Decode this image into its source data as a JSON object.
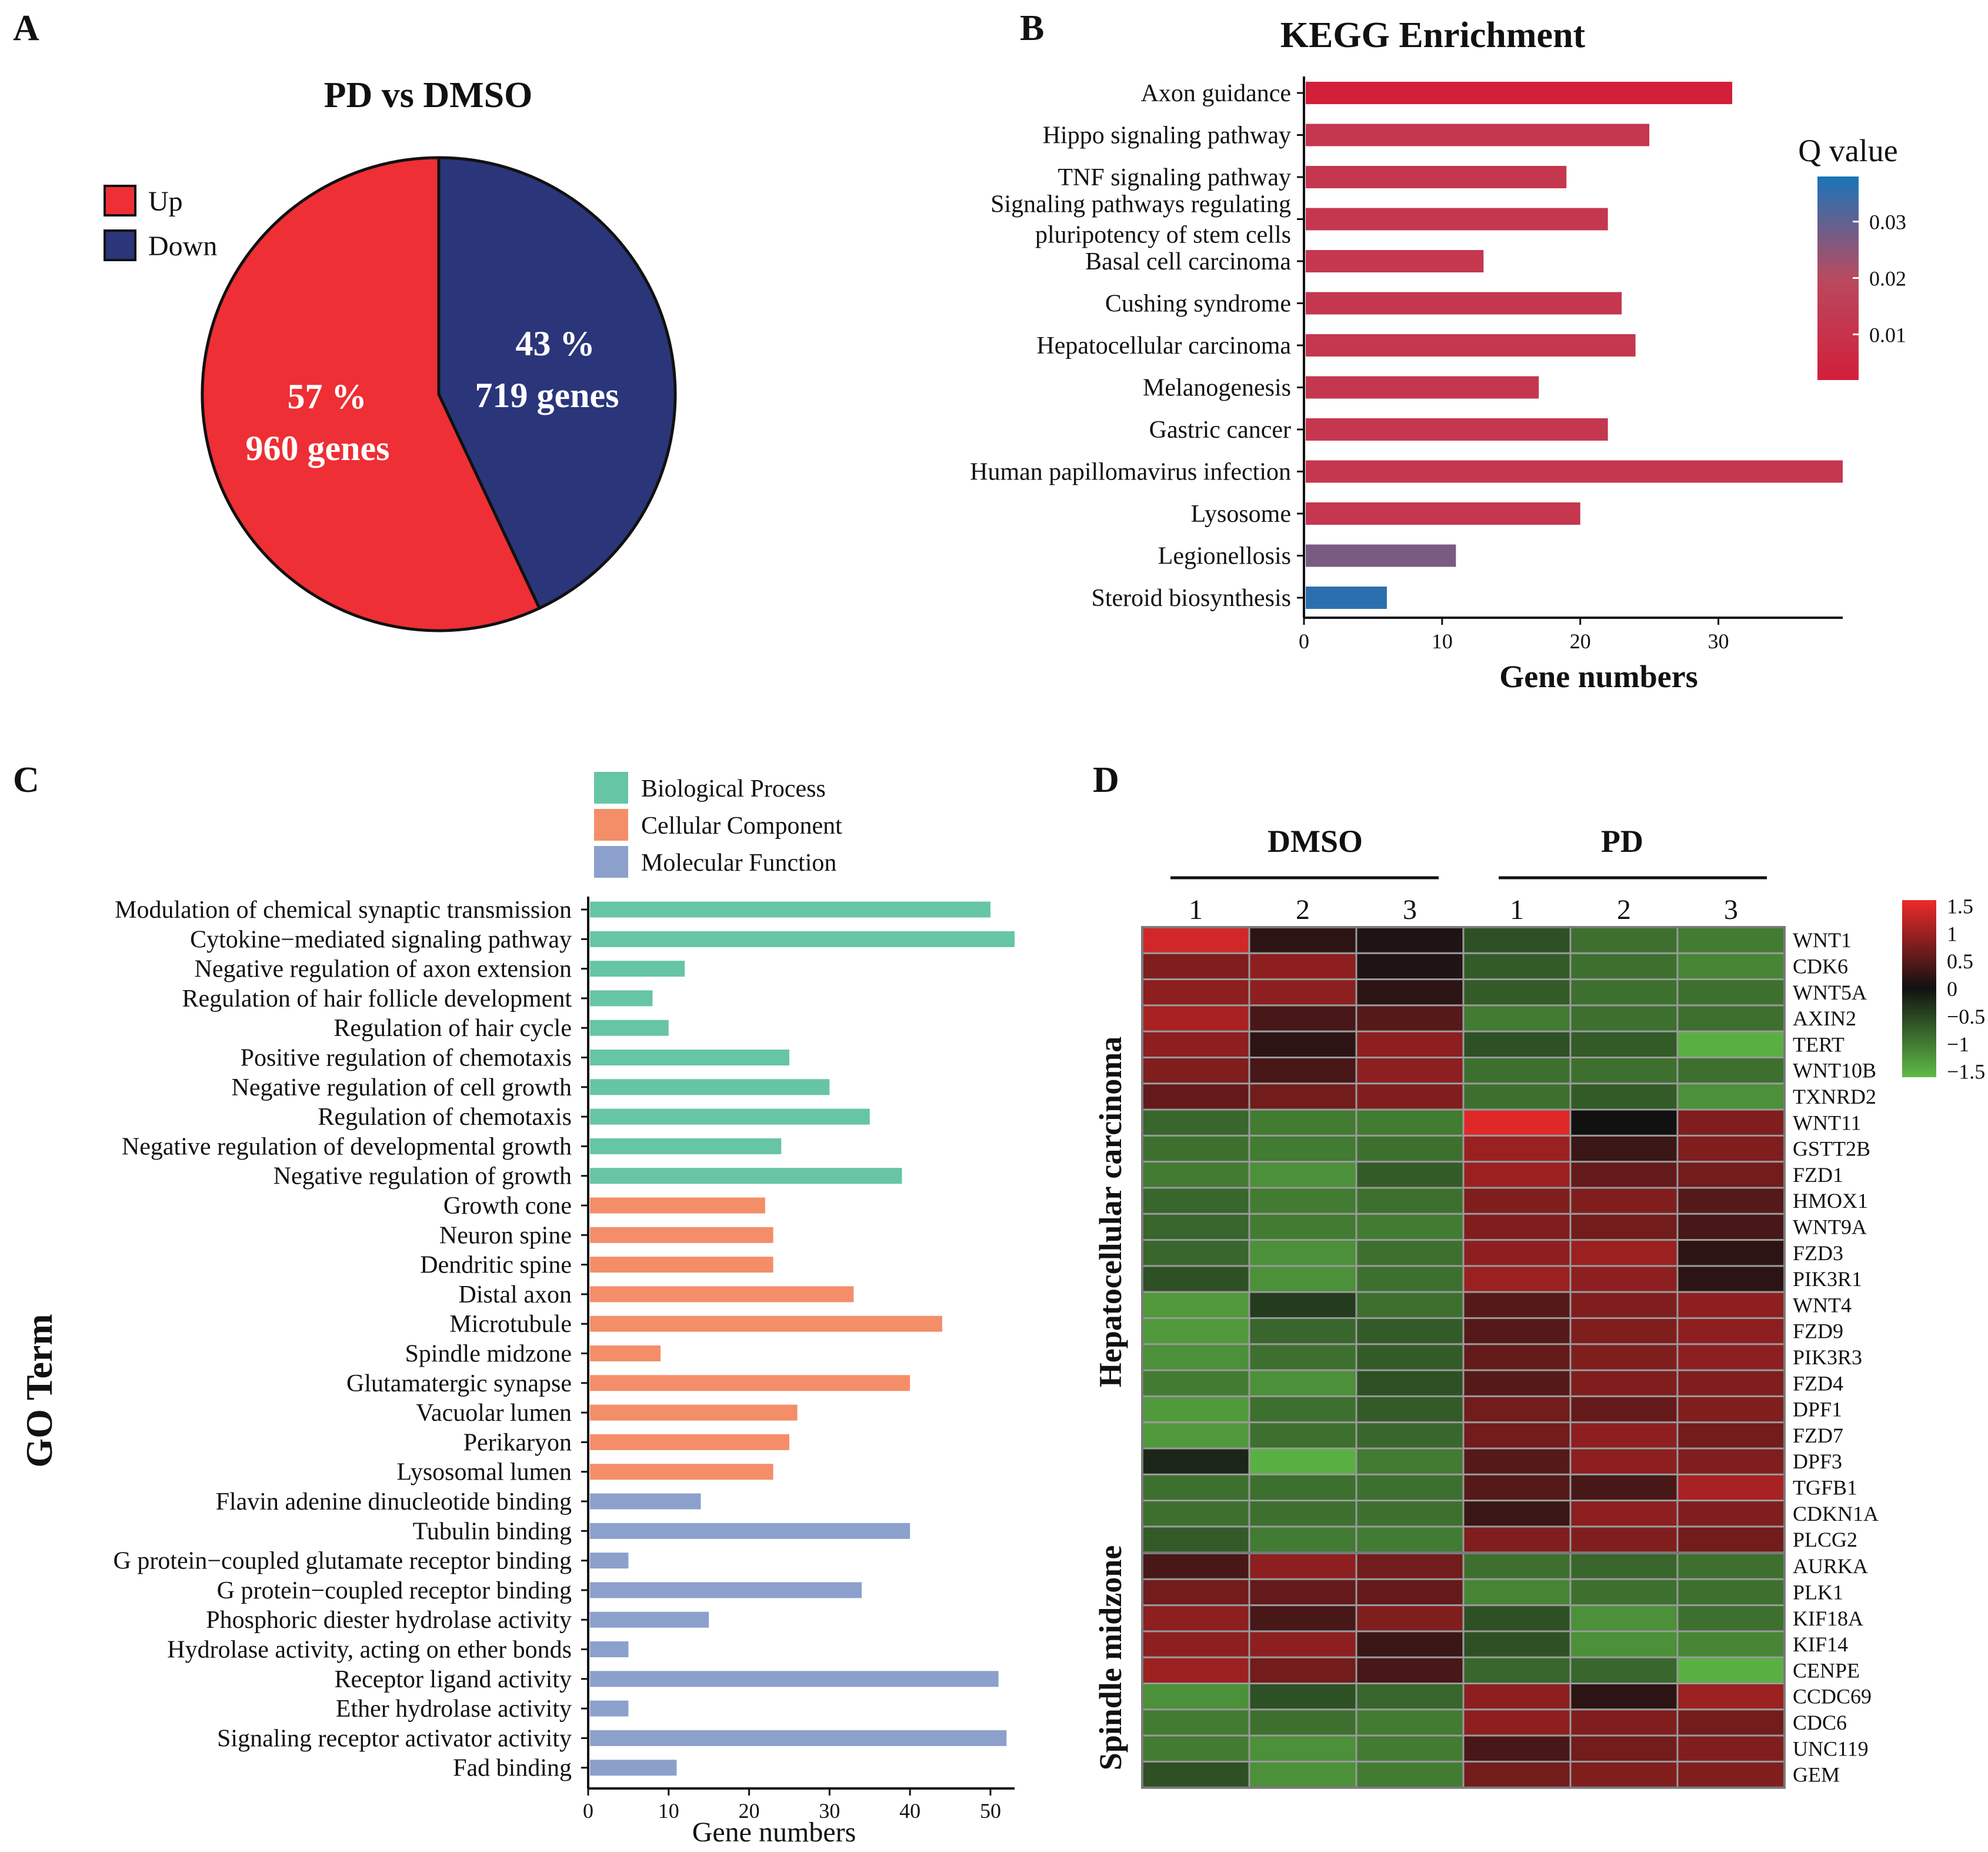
{
  "panels": {
    "a": "A",
    "b": "B",
    "c": "C",
    "d": "D"
  },
  "colors": {
    "up": "#ee2f35",
    "down": "#2b357a",
    "bp": "#66c5a5",
    "cc": "#f48e69",
    "mf": "#8ba0cb",
    "q_low": "#d21f3a",
    "q_mid": "#b84a5f",
    "q_high": "#1a74b8",
    "hm_high": "#ee2a2b",
    "hm_mid": "#111111",
    "hm_low": "#5fba46"
  },
  "chart_data": [
    {
      "id": "pie",
      "type": "pie",
      "title": "PD vs DMSO",
      "legend": [
        "Up",
        "Down"
      ],
      "slices": [
        {
          "name": "Up",
          "percent": 57,
          "genes": 960,
          "label_pct": "57 %",
          "label_genes": "960 genes"
        },
        {
          "name": "Down",
          "percent": 43,
          "genes": 719,
          "label_pct": "43 %",
          "label_genes": "719 genes"
        }
      ]
    },
    {
      "id": "kegg",
      "type": "bar",
      "orientation": "horizontal",
      "title": "KEGG Enrichment",
      "xlabel": "Gene numbers",
      "xlim": [
        0,
        39
      ],
      "xticks": [
        0,
        10,
        20,
        30
      ],
      "categories": [
        "Axon guidance",
        "Hippo signaling pathway",
        "TNF signaling pathway",
        "Signaling pathways regulating pluripotency of stem cells",
        "Basal cell carcinoma",
        "Cushing syndrome",
        "Hepatocellular carcinoma",
        "Melanogenesis",
        "Gastric cancer",
        "Human papillomavirus infection",
        "Lysosome",
        "Legionellosis",
        "Steroid biosynthesis"
      ],
      "category_lines": [
        [
          "Axon guidance"
        ],
        [
          "Hippo signaling pathway"
        ],
        [
          "TNF signaling pathway"
        ],
        [
          "Signaling pathways regulating",
          "pluripotency of stem cells"
        ],
        [
          "Basal cell carcinoma"
        ],
        [
          "Cushing syndrome"
        ],
        [
          "Hepatocellular carcinoma"
        ],
        [
          "Melanogenesis"
        ],
        [
          "Gastric cancer"
        ],
        [
          "Human papillomavirus infection"
        ],
        [
          "Lysosome"
        ],
        [
          "Legionellosis"
        ],
        [
          "Steroid biosynthesis"
        ]
      ],
      "values": [
        31,
        25,
        19,
        22,
        13,
        23,
        24,
        17,
        22,
        39,
        20,
        11,
        6
      ],
      "q_values": [
        0.002,
        0.012,
        0.012,
        0.012,
        0.012,
        0.012,
        0.012,
        0.012,
        0.012,
        0.012,
        0.012,
        0.027,
        0.036
      ],
      "colorbar": {
        "title": "Q value",
        "ticks": [
          0.01,
          0.02,
          0.03
        ],
        "tick_labels": [
          "0.01",
          "0.02",
          "0.03"
        ],
        "range": [
          0.002,
          0.038
        ]
      }
    },
    {
      "id": "go",
      "type": "bar",
      "orientation": "horizontal",
      "xlabel": "Gene numbers",
      "ylabel": "GO Term",
      "xlim": [
        0,
        53
      ],
      "xticks": [
        0,
        10,
        20,
        30,
        40,
        50
      ],
      "legend": [
        "Biological Process",
        "Cellular Component",
        "Molecular Function"
      ],
      "categories": [
        "Modulation of chemical synaptic transmission",
        "Cytokine−mediated signaling pathway",
        "Negative regulation of axon extension",
        "Regulation of hair follicle development",
        "Regulation of hair cycle",
        "Positive regulation of chemotaxis",
        "Negative regulation of cell growth",
        "Regulation of chemotaxis",
        "Negative regulation of developmental growth",
        "Negative regulation of growth",
        "Growth cone",
        "Neuron spine",
        "Dendritic spine",
        "Distal axon",
        "Microtubule",
        "Spindle midzone",
        "Glutamatergic synapse",
        "Vacuolar lumen",
        "Perikaryon",
        "Lysosomal lumen",
        "Flavin adenine dinucleotide binding",
        "Tubulin binding",
        "G protein−coupled glutamate receptor binding",
        "G protein−coupled receptor binding",
        "Phosphoric diester hydrolase activity",
        "Hydrolase activity, acting on ether bonds",
        "Receptor ligand activity",
        "Ether hydrolase activity",
        "Signaling receptor activator activity",
        "Fad binding"
      ],
      "values": [
        50,
        53,
        12,
        8,
        10,
        25,
        30,
        35,
        24,
        39,
        22,
        23,
        23,
        33,
        44,
        9,
        40,
        26,
        25,
        23,
        14,
        40,
        5,
        34,
        15,
        5,
        51,
        5,
        52,
        11
      ],
      "groups": [
        0,
        0,
        0,
        0,
        0,
        0,
        0,
        0,
        0,
        0,
        1,
        1,
        1,
        1,
        1,
        1,
        1,
        1,
        1,
        1,
        2,
        2,
        2,
        2,
        2,
        2,
        2,
        2,
        2,
        2
      ]
    },
    {
      "id": "heatmap",
      "type": "heatmap",
      "conditions": [
        "DMSO",
        "PD"
      ],
      "columns": [
        "1",
        "2",
        "3",
        "1",
        "2",
        "3"
      ],
      "colorbar": {
        "ticks": [
          1.5,
          1,
          0.5,
          0,
          -0.5,
          -1,
          -1.5
        ],
        "tick_labels": [
          "1.5",
          "1",
          "0.5",
          "0",
          "−0.5",
          "−1",
          "−1.5"
        ],
        "range": [
          -1.6,
          1.6
        ]
      },
      "groups": [
        {
          "name": "Hepatocellular carcinoma",
          "rows": [
            "WNT1",
            "CDK6",
            "WNT5A",
            "AXIN2",
            "TERT",
            "WNT10B",
            "TXNRD2",
            "WNT11",
            "GSTT2B",
            "FZD1",
            "HMOX1",
            "WNT9A",
            "FZD3",
            "PIK3R1",
            "WNT4",
            "FZD9",
            "PIK3R3",
            "FZD4",
            "DPF1",
            "FZD7",
            "DPF3",
            "TGFB1",
            "CDKN1A",
            "PLCG2"
          ],
          "values": [
            [
              1.4,
              0.2,
              0.1,
              -0.6,
              -0.9,
              -1.0
            ],
            [
              0.8,
              0.9,
              0.1,
              -0.7,
              -0.9,
              -1.1
            ],
            [
              0.9,
              0.9,
              0.2,
              -0.7,
              -0.9,
              -0.9
            ],
            [
              1.1,
              0.4,
              0.5,
              -1.0,
              -0.9,
              -0.9
            ],
            [
              0.9,
              0.2,
              0.9,
              -0.6,
              -0.7,
              -1.5
            ],
            [
              0.8,
              0.4,
              0.9,
              -0.9,
              -0.9,
              -0.9
            ],
            [
              0.6,
              0.7,
              0.8,
              -0.9,
              -0.7,
              -1.2
            ],
            [
              -0.8,
              -1.0,
              -1.0,
              1.5,
              0.0,
              0.8
            ],
            [
              -0.9,
              -1.0,
              -0.9,
              1.0,
              0.3,
              0.8
            ],
            [
              -1.0,
              -1.2,
              -0.7,
              1.0,
              0.6,
              0.7
            ],
            [
              -0.8,
              -1.0,
              -0.9,
              0.8,
              0.8,
              0.5
            ],
            [
              -0.8,
              -1.0,
              -1.0,
              0.8,
              0.7,
              0.4
            ],
            [
              -0.8,
              -1.2,
              -0.9,
              0.9,
              1.0,
              0.2
            ],
            [
              -0.6,
              -1.2,
              -0.9,
              1.0,
              0.9,
              0.2
            ],
            [
              -1.3,
              -0.4,
              -0.9,
              0.5,
              0.8,
              0.9
            ],
            [
              -1.3,
              -0.8,
              -0.7,
              0.5,
              0.8,
              0.9
            ],
            [
              -1.2,
              -0.9,
              -0.7,
              0.6,
              0.8,
              0.9
            ],
            [
              -1.0,
              -1.2,
              -0.6,
              0.5,
              0.8,
              0.8
            ],
            [
              -1.3,
              -0.9,
              -0.7,
              0.7,
              0.6,
              0.8
            ],
            [
              -1.3,
              -0.9,
              -0.8,
              0.7,
              0.9,
              0.7
            ],
            [
              -0.2,
              -1.5,
              -1.0,
              0.5,
              0.9,
              0.8
            ],
            [
              -0.9,
              -0.9,
              -0.9,
              0.5,
              0.4,
              1.1
            ],
            [
              -0.9,
              -0.9,
              -0.9,
              0.3,
              0.9,
              0.8
            ],
            [
              -0.7,
              -1.0,
              -1.0,
              0.8,
              0.8,
              0.7
            ]
          ]
        },
        {
          "name": "Spindle midzone",
          "rows": [
            "AURKA",
            "PLK1",
            "KIF18A",
            "KIF14",
            "CENPE",
            "CCDC69",
            "CDC6",
            "UNC119",
            "GEM"
          ],
          "values": [
            [
              0.4,
              0.9,
              0.7,
              -0.9,
              -0.8,
              -0.9
            ],
            [
              0.7,
              0.6,
              0.6,
              -1.1,
              -0.9,
              -0.9
            ],
            [
              0.9,
              0.4,
              0.8,
              -0.6,
              -1.2,
              -0.9
            ],
            [
              0.9,
              0.9,
              0.3,
              -0.6,
              -1.2,
              -1.1
            ],
            [
              1.0,
              0.7,
              0.4,
              -0.8,
              -0.8,
              -1.5
            ],
            [
              -1.2,
              -0.6,
              -0.8,
              0.9,
              0.2,
              1.0
            ],
            [
              -1.0,
              -0.9,
              -1.0,
              0.9,
              0.8,
              0.7
            ],
            [
              -1.0,
              -1.2,
              -1.0,
              0.4,
              0.7,
              0.8
            ],
            [
              -0.6,
              -1.2,
              -1.0,
              0.7,
              0.8,
              0.8
            ]
          ]
        }
      ]
    }
  ]
}
